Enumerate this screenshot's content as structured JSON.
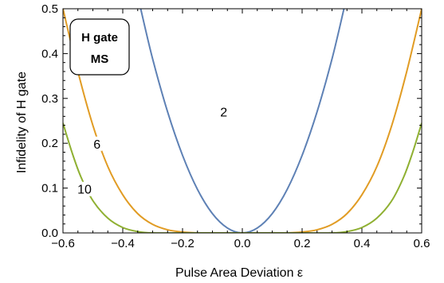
{
  "chart_data": {
    "type": "line",
    "xlabel": "Pulse Area Deviation ε",
    "ylabel": "Infidelity of H gate",
    "xlim": [
      -0.6,
      0.6
    ],
    "ylim": [
      0,
      0.5
    ],
    "x_ticks": [
      -0.6,
      -0.4,
      -0.2,
      0.0,
      0.2,
      0.4,
      0.6
    ],
    "x_tick_labels": [
      "−0.6",
      "−0.4",
      "−0.2",
      "0.0",
      "0.2",
      "0.4",
      "0.6"
    ],
    "y_ticks": [
      0.0,
      0.1,
      0.2,
      0.3,
      0.4,
      0.5
    ],
    "y_tick_labels": [
      "0.0",
      "0.1",
      "0.2",
      "0.3",
      "0.4",
      "0.5"
    ],
    "grid": false,
    "legend": {
      "position": "top-left",
      "lines": [
        "H gate",
        "MS"
      ]
    },
    "series": [
      {
        "name": "2",
        "color": "#5e81b5",
        "x": [
          -0.34,
          -0.3,
          -0.25,
          -0.2,
          -0.15,
          -0.1,
          -0.05,
          0.0,
          0.05,
          0.1,
          0.15,
          0.2,
          0.25,
          0.3,
          0.34
        ],
        "y": [
          0.5,
          0.388,
          0.27,
          0.173,
          0.097,
          0.043,
          0.011,
          0.0,
          0.011,
          0.043,
          0.097,
          0.173,
          0.27,
          0.388,
          0.5
        ],
        "label_at": [
          -0.062,
          0.27
        ]
      },
      {
        "name": "6",
        "color": "#e19c24",
        "x": [
          -0.6,
          -0.55,
          -0.5,
          -0.45,
          -0.4,
          -0.35,
          -0.3,
          -0.25,
          -0.2,
          -0.15,
          -0.1,
          0.0,
          0.1,
          0.15,
          0.2,
          0.25,
          0.3,
          0.35,
          0.4,
          0.45,
          0.5,
          0.55,
          0.6
        ],
        "y": [
          0.5,
          0.36,
          0.24,
          0.148,
          0.085,
          0.043,
          0.019,
          0.007,
          0.002,
          0.0,
          0.0,
          0.0,
          0.0,
          0.0,
          0.002,
          0.007,
          0.019,
          0.043,
          0.085,
          0.148,
          0.24,
          0.36,
          0.5
        ],
        "label_at": [
          -0.486,
          0.199
        ]
      },
      {
        "name": "10",
        "color": "#8fb032",
        "x": [
          -0.6,
          -0.57,
          -0.54,
          -0.5,
          -0.45,
          -0.4,
          -0.35,
          -0.3,
          -0.2,
          0.0,
          0.2,
          0.3,
          0.35,
          0.4,
          0.45,
          0.5,
          0.54,
          0.57,
          0.6
        ],
        "y": [
          0.245,
          0.18,
          0.125,
          0.072,
          0.033,
          0.012,
          0.003,
          0.0,
          0.0,
          0.0,
          0.0,
          0.0,
          0.003,
          0.012,
          0.033,
          0.072,
          0.125,
          0.18,
          0.245
        ],
        "label_at": [
          -0.528,
          0.098
        ]
      }
    ]
  }
}
